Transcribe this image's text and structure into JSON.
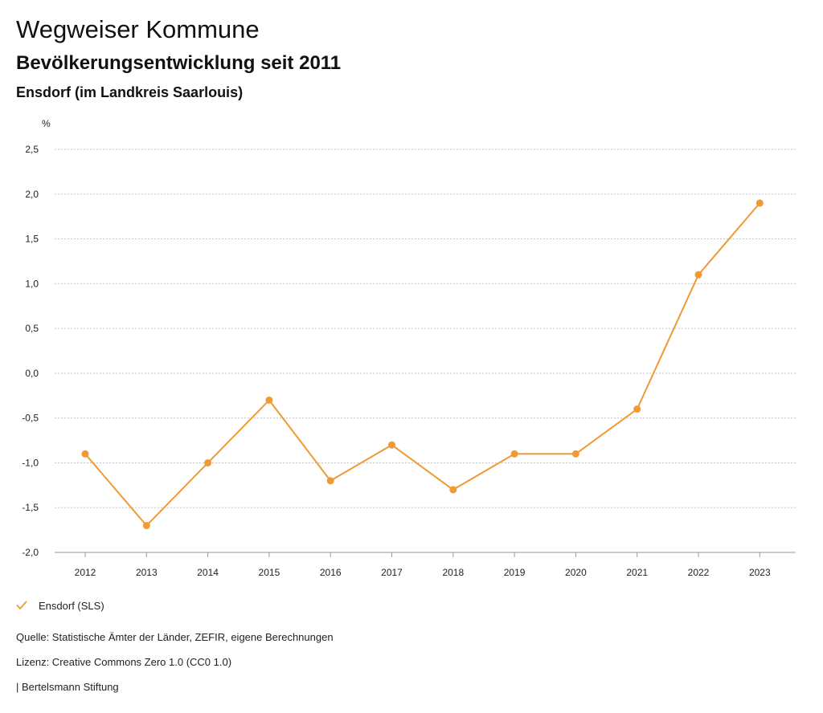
{
  "header": {
    "title": "Wegweiser Kommune",
    "subtitle": "Bevölkerungsentwicklung seit 2011",
    "place": "Ensdorf (im Landkreis Saarlouis)"
  },
  "chart_data": {
    "type": "line",
    "title": "Bevölkerungsentwicklung seit 2011",
    "ylabel": "%",
    "xlabel": "",
    "ylim": [
      -2.0,
      2.5
    ],
    "yticks": [
      2.5,
      2.0,
      1.5,
      1.0,
      0.5,
      0.0,
      -0.5,
      -1.0,
      -1.5,
      -2.0
    ],
    "ytick_labels": [
      "2,5",
      "2,0",
      "1,5",
      "1,0",
      "0,5",
      "0,0",
      "-0,5",
      "-1,0",
      "-1,5",
      "-2,0"
    ],
    "categories": [
      "2012",
      "2013",
      "2014",
      "2015",
      "2016",
      "2017",
      "2018",
      "2019",
      "2020",
      "2021",
      "2022",
      "2023"
    ],
    "series": [
      {
        "name": "Ensdorf (SLS)",
        "color": "#ef9a34",
        "values": [
          -0.9,
          -1.7,
          -1.0,
          -0.3,
          -1.2,
          -0.8,
          -1.3,
          -0.9,
          -0.9,
          -0.4,
          1.1,
          1.9
        ]
      }
    ],
    "grid": true,
    "legend_position": "bottom-left"
  },
  "legend": {
    "label": "Ensdorf (SLS)",
    "icon": "check-icon"
  },
  "footer": {
    "source": "Quelle: Statistische Ämter der Länder, ZEFIR, eigene Berechnungen",
    "license": "Lizenz: Creative Commons Zero 1.0 (CC0 1.0)",
    "brand": "| Bertelsmann Stiftung"
  }
}
